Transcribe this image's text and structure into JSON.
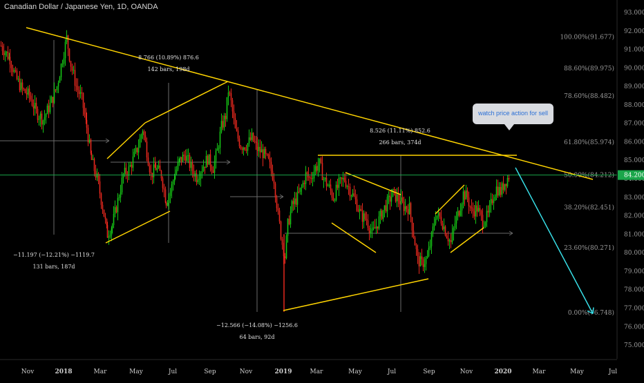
{
  "header": {
    "title": "Canadian Dollar / Japanese Yen, 1D, OANDA"
  },
  "callout": {
    "text": "watch price action for sell"
  },
  "colors": {
    "background": "#000000",
    "trendline": "#ffd400",
    "up_candle": "#16c616",
    "down_candle": "#e6281e",
    "price_line": "#1aa64a",
    "arrow": "#38e0e8",
    "axis_text": "#9a9a9a"
  },
  "chart_data": {
    "type": "candlestick",
    "symbol": "CADJPY",
    "timeframe": "1D",
    "x_tick_labels": [
      "Nov",
      "2018",
      "Mar",
      "May",
      "Jul",
      "Sep",
      "Nov",
      "2019",
      "Mar",
      "May",
      "Jul",
      "Sep",
      "Nov",
      "2020",
      "Mar",
      "May",
      "Jul"
    ],
    "y_ticks": [
      75,
      76,
      77,
      78,
      79,
      80,
      81,
      82,
      83,
      84,
      85,
      86,
      87,
      88,
      89,
      90,
      91,
      92,
      93
    ],
    "y_tick_labels": [
      "75.000",
      "76.000",
      "77.000",
      "78.000",
      "79.000",
      "80.000",
      "81.000",
      "82.000",
      "83.000",
      "84.000",
      "85.000",
      "86.000",
      "87.000",
      "88.000",
      "89.000",
      "90.000",
      "91.000",
      "92.000",
      "93.000"
    ],
    "ylim": [
      74.5,
      93.4
    ],
    "current_price": 84.2,
    "current_price_label": "84.200",
    "fib_levels": [
      {
        "level": 91.677,
        "label": "100.00%(91.677)"
      },
      {
        "level": 89.975,
        "label": "88.60%(89.975)"
      },
      {
        "level": 88.482,
        "label": "78.60%(88.482)"
      },
      {
        "level": 85.974,
        "label": "61.80%(85.974)"
      },
      {
        "level": 84.212,
        "label": "50.00%(84.212)"
      },
      {
        "level": 82.451,
        "label": "38.20%(82.451)"
      },
      {
        "level": 80.271,
        "label": "23.60%(80.271)"
      },
      {
        "level": 76.748,
        "label": "0.00%(76.748)"
      }
    ],
    "price_path": [
      [
        1,
        91.2
      ],
      [
        14,
        90.5
      ],
      [
        22,
        89.5
      ],
      [
        32,
        88.8
      ],
      [
        42,
        88.5
      ],
      [
        52,
        87.6
      ],
      [
        62,
        87.2
      ],
      [
        72,
        88.0
      ],
      [
        82,
        89.0
      ],
      [
        90,
        90.5
      ],
      [
        96,
        91.6
      ],
      [
        102,
        90.2
      ],
      [
        110,
        89.0
      ],
      [
        118,
        88.3
      ],
      [
        125,
        86.8
      ],
      [
        132,
        85.0
      ],
      [
        140,
        84.0
      ],
      [
        148,
        82.5
      ],
      [
        155,
        81.0
      ],
      [
        162,
        81.5
      ],
      [
        170,
        82.8
      ],
      [
        178,
        84.2
      ],
      [
        186,
        84.5
      ],
      [
        194,
        85.2
      ],
      [
        200,
        85.8
      ],
      [
        206,
        86.7
      ],
      [
        212,
        85.5
      ],
      [
        218,
        84.2
      ],
      [
        225,
        84.6
      ],
      [
        233,
        84.2
      ],
      [
        240,
        82.8
      ],
      [
        246,
        83.3
      ],
      [
        253,
        84.3
      ],
      [
        260,
        85.0
      ],
      [
        268,
        85.3
      ],
      [
        276,
        84.6
      ],
      [
        284,
        84.1
      ],
      [
        292,
        84.6
      ],
      [
        300,
        85.1
      ],
      [
        308,
        84.6
      ],
      [
        314,
        85.5
      ],
      [
        320,
        86.8
      ],
      [
        326,
        87.4
      ],
      [
        330,
        88.8
      ],
      [
        334,
        88.1
      ],
      [
        340,
        86.6
      ],
      [
        348,
        85.8
      ],
      [
        356,
        85.8
      ],
      [
        364,
        86.2
      ],
      [
        372,
        85.6
      ],
      [
        380,
        85.4
      ],
      [
        388,
        84.9
      ],
      [
        396,
        84.0
      ],
      [
        402,
        82.0
      ],
      [
        408,
        80.5
      ],
      [
        412,
        79.8
      ],
      [
        416,
        81.5
      ],
      [
        422,
        82.5
      ],
      [
        430,
        83.0
      ],
      [
        436,
        83.5
      ],
      [
        442,
        84.2
      ],
      [
        448,
        84.0
      ],
      [
        456,
        84.6
      ],
      [
        462,
        84.8
      ],
      [
        468,
        84.0
      ],
      [
        476,
        83.5
      ],
      [
        482,
        83.0
      ],
      [
        490,
        83.7
      ],
      [
        498,
        84.0
      ],
      [
        506,
        83.4
      ],
      [
        514,
        82.8
      ],
      [
        522,
        82.0
      ],
      [
        530,
        81.8
      ],
      [
        538,
        81.0
      ],
      [
        546,
        81.6
      ],
      [
        554,
        82.3
      ],
      [
        562,
        82.8
      ],
      [
        568,
        83.2
      ],
      [
        576,
        82.9
      ],
      [
        584,
        82.5
      ],
      [
        592,
        82.4
      ],
      [
        598,
        81.0
      ],
      [
        604,
        79.6
      ],
      [
        610,
        79.4
      ],
      [
        618,
        79.7
      ],
      [
        624,
        80.8
      ],
      [
        630,
        82.1
      ],
      [
        638,
        81.8
      ],
      [
        646,
        81.0
      ],
      [
        652,
        80.5
      ],
      [
        658,
        81.6
      ],
      [
        664,
        82.3
      ],
      [
        670,
        83.2
      ],
      [
        676,
        83.0
      ],
      [
        682,
        82.2
      ],
      [
        690,
        82.4
      ],
      [
        698,
        81.7
      ],
      [
        706,
        82.0
      ],
      [
        712,
        82.9
      ],
      [
        718,
        83.5
      ],
      [
        724,
        83.3
      ],
      [
        730,
        83.8
      ],
      [
        737,
        84.2
      ]
    ],
    "trendlines": [
      {
        "label": "descending resistance",
        "from": [
          38,
          40
        ],
        "to": [
          858,
          260
        ]
      },
      {
        "label": "support",
        "from": [
          153,
          352
        ],
        "to": [
          246,
          306
        ]
      },
      {
        "label": "channel upper",
        "from": [
          155,
          230
        ],
        "to": [
          210,
          178
        ]
      },
      {
        "label": "rising wedge upper",
        "from": [
          210,
          178
        ],
        "to": [
          330,
          118
        ]
      },
      {
        "label": "low support",
        "from": [
          410,
          450
        ],
        "to": [
          620,
          404
        ]
      },
      {
        "label": "horizontal resistance",
        "from": [
          460,
          225
        ],
        "to": [
          748,
          225
        ]
      },
      {
        "label": "flag upper",
        "from": [
          500,
          250
        ],
        "to": [
          580,
          282
        ]
      },
      {
        "label": "flag lower",
        "from": [
          480,
          323
        ],
        "to": [
          544,
          366
        ]
      },
      {
        "label": "wedge upper",
        "from": [
          630,
          310
        ],
        "to": [
          672,
          268
        ]
      },
      {
        "label": "wedge lower",
        "from": [
          652,
          366
        ],
        "to": [
          700,
          330
        ]
      }
    ],
    "measurements": [
      {
        "id": "m1",
        "line1": "8.766 (10.89%) 876.6",
        "line2": "142 bars, 198d"
      },
      {
        "id": "m2",
        "line1": "8.526 (11.11%) 852.6",
        "line2": "266 bars, 374d"
      },
      {
        "id": "m3",
        "line1": "−11.197 (−12.21%) −1119.7",
        "line2": "131 bars, 187d"
      },
      {
        "id": "m4",
        "line1": "−12.566 (−14.08%) −1256.6",
        "line2": "64 bars, 92d"
      }
    ],
    "projection": {
      "label": "projected drop",
      "from_price": 84.6,
      "to_price": 76.7
    }
  }
}
